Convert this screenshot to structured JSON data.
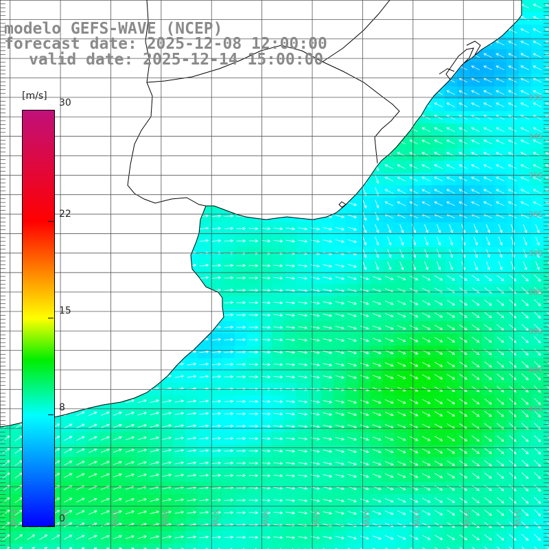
{
  "title": {
    "model": "modelo GEFS-WAVE (NCEP)",
    "forecast": "forecast date: 2025-12-08 12:00:00",
    "valid": "valid date: 2025-12-14 15:00:00"
  },
  "colorbar": {
    "unit": "[m/s]",
    "range": [
      0,
      30
    ],
    "ticks": [
      {
        "value": 30,
        "label": "30"
      },
      {
        "value": 22,
        "label": "22"
      },
      {
        "value": 15,
        "label": "15"
      },
      {
        "value": 8,
        "label": "8"
      },
      {
        "value": 0,
        "label": "0"
      }
    ],
    "stops": [
      {
        "value": 0,
        "color": "#0000ff"
      },
      {
        "value": 8,
        "color": "#00ffff"
      },
      {
        "value": 12,
        "color": "#00ee00"
      },
      {
        "value": 15,
        "color": "#ffff00"
      },
      {
        "value": 22,
        "color": "#ff0000"
      },
      {
        "value": 30,
        "color": "#c0107a"
      }
    ]
  },
  "map": {
    "lon_range": [
      -61.2,
      -50.3
    ],
    "lat_range": [
      -44.6,
      -30.5
    ],
    "lat_labels": [
      "33S",
      "34S",
      "35S",
      "36S",
      "37S",
      "38S",
      "39S",
      "40S",
      "41S"
    ],
    "lon_labels": [
      "61W",
      "60W",
      "59W",
      "58W",
      "57W",
      "56W",
      "55W",
      "54W",
      "53W",
      "52W",
      "51W"
    ],
    "colors": {
      "land": "#ffffff",
      "coast": "#000000",
      "grid": "#555555",
      "arrow": "#ffffff",
      "label": "#9a9a9a"
    }
  }
}
